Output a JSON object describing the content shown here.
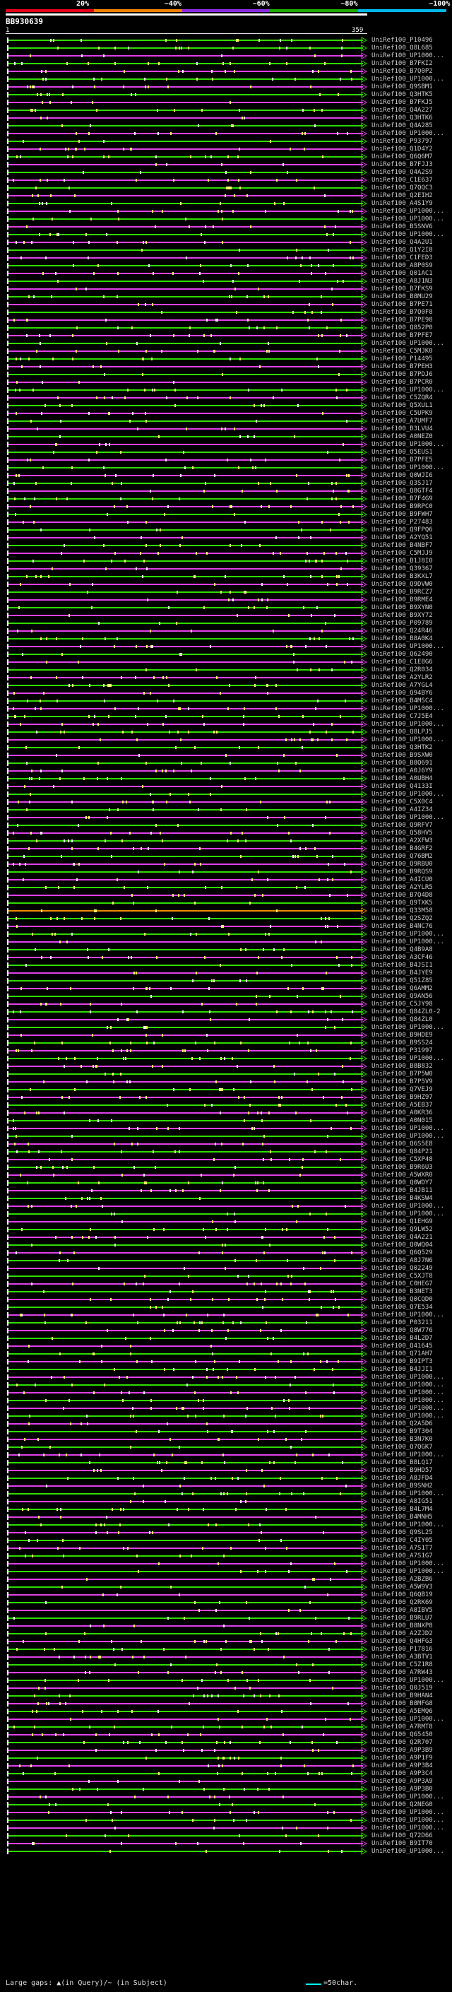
{
  "legend": {
    "labels": [
      "20%",
      "~40%",
      "~60%",
      "~80%",
      "~100%"
    ],
    "colors": [
      "#e8001a",
      "#f08000",
      "#8a2be2",
      "#1faa00",
      "#00b8e8"
    ]
  },
  "query": {
    "id": "BB930639",
    "start": "1",
    "end": "359"
  },
  "hit_colors": {
    "green": "#2fdc00",
    "magenta": "#e040e8",
    "white": "#ffffff",
    "orange": "#f08a00"
  },
  "hits": [
    {
      "acc": "UniRef100_P10496",
      "c": "green"
    },
    {
      "acc": "UniRef100_Q8L685",
      "c": "green"
    },
    {
      "acc": "UniRef100_UP1000...",
      "c": "magenta"
    },
    {
      "acc": "UniRef100_B7FKI2",
      "c": "green"
    },
    {
      "acc": "UniRef100_B7Q0P2",
      "c": "magenta"
    },
    {
      "acc": "UniRef100_UP1000...",
      "c": "green"
    },
    {
      "acc": "UniRef100_Q9SBM1",
      "c": "magenta"
    },
    {
      "acc": "UniRef100_Q3HTK5",
      "c": "green"
    },
    {
      "acc": "UniRef100_B7FKJ5",
      "c": "magenta"
    },
    {
      "acc": "UniRef100_Q4A227",
      "c": "green"
    },
    {
      "acc": "UniRef100_Q3HTK6",
      "c": "magenta"
    },
    {
      "acc": "UniRef100_Q4A285",
      "c": "green"
    },
    {
      "acc": "UniRef100_UP1000...",
      "c": "magenta"
    },
    {
      "acc": "UniRef100_P93797",
      "c": "green"
    },
    {
      "acc": "UniRef100_Q1D4Y2",
      "c": "magenta"
    },
    {
      "acc": "UniRef100_Q6Q6M7",
      "c": "green"
    },
    {
      "acc": "UniRef100_B7FJJ3",
      "c": "magenta"
    },
    {
      "acc": "UniRef100_Q4A2S9",
      "c": "green"
    },
    {
      "acc": "UniRef100_C1E637",
      "c": "magenta"
    },
    {
      "acc": "UniRef100_Q7QQC3",
      "c": "green"
    },
    {
      "acc": "UniRef100_Q2EIH2",
      "c": "magenta"
    },
    {
      "acc": "UniRef100_A4S1Y9",
      "c": "green"
    },
    {
      "acc": "UniRef100_UP1000...",
      "c": "magenta"
    },
    {
      "acc": "UniRef100_UP1000...",
      "c": "green"
    },
    {
      "acc": "UniRef100_B5SNV6",
      "c": "magenta"
    },
    {
      "acc": "UniRef100_UP1000...",
      "c": "green"
    },
    {
      "acc": "UniRef100_Q4A2U1",
      "c": "magenta"
    },
    {
      "acc": "UniRef100_Q1Y2I8",
      "c": "green"
    },
    {
      "acc": "UniRef100_C1FED3",
      "c": "magenta"
    },
    {
      "acc": "UniRef100_A8P0S9",
      "c": "green"
    },
    {
      "acc": "UniRef100_Q01AC1",
      "c": "magenta"
    },
    {
      "acc": "UniRef100_A8J1N3",
      "c": "green"
    },
    {
      "acc": "UniRef100_B7FKS9",
      "c": "magenta"
    },
    {
      "acc": "UniRef100_B8MU29",
      "c": "green"
    },
    {
      "acc": "UniRef100_B7PE71",
      "c": "magenta"
    },
    {
      "acc": "UniRef100_B7Q0F8",
      "c": "green"
    },
    {
      "acc": "UniRef100_B7PE98",
      "c": "magenta"
    },
    {
      "acc": "UniRef100_Q852P0",
      "c": "green"
    },
    {
      "acc": "UniRef100_B7PFE7",
      "c": "magenta"
    },
    {
      "acc": "UniRef100_UP1000...",
      "c": "green"
    },
    {
      "acc": "UniRef100_C5MJK0",
      "c": "magenta"
    },
    {
      "acc": "UniRef100_P14495",
      "c": "green"
    },
    {
      "acc": "UniRef100_B7PEH3",
      "c": "magenta"
    },
    {
      "acc": "UniRef100_B7PDJ6",
      "c": "green"
    },
    {
      "acc": "UniRef100_B7PCR0",
      "c": "magenta"
    },
    {
      "acc": "UniRef100_UP1000...",
      "c": "green"
    },
    {
      "acc": "UniRef100_C5ZQR4",
      "c": "magenta"
    },
    {
      "acc": "UniRef100_Q5XUL1",
      "c": "green"
    },
    {
      "acc": "UniRef100_C5UPK9",
      "c": "magenta"
    },
    {
      "acc": "UniRef100_A7UMF7",
      "c": "green"
    },
    {
      "acc": "UniRef100_B3LVU4",
      "c": "magenta"
    },
    {
      "acc": "UniRef100_A0NEZ0",
      "c": "green"
    },
    {
      "acc": "UniRef100_UP1000...",
      "c": "magenta"
    },
    {
      "acc": "UniRef100_Q5EUS1",
      "c": "green"
    },
    {
      "acc": "UniRef100_B7PFE5",
      "c": "magenta"
    },
    {
      "acc": "UniRef100_UP1000...",
      "c": "green"
    },
    {
      "acc": "UniRef100_Q0WJI6",
      "c": "magenta"
    },
    {
      "acc": "UniRef100_Q3SJ17",
      "c": "green"
    },
    {
      "acc": "UniRef100_Q8GTF4",
      "c": "magenta"
    },
    {
      "acc": "UniRef100_B7F4G9",
      "c": "green"
    },
    {
      "acc": "UniRef100_B9RPC0",
      "c": "magenta"
    },
    {
      "acc": "UniRef100_B9FWH7",
      "c": "green"
    },
    {
      "acc": "UniRef100_P27483",
      "c": "magenta"
    },
    {
      "acc": "UniRef100_Q9FPQ6",
      "c": "green"
    },
    {
      "acc": "UniRef100_A2YQ51",
      "c": "magenta"
    },
    {
      "acc": "UniRef100_B4NBF7",
      "c": "green"
    },
    {
      "acc": "UniRef100_C5MJJ9",
      "c": "magenta"
    },
    {
      "acc": "UniRef100_B1J8I0",
      "c": "green"
    },
    {
      "acc": "UniRef100_Q39367",
      "c": "magenta"
    },
    {
      "acc": "UniRef100_B3KXL7",
      "c": "green"
    },
    {
      "acc": "UniRef100_Q9DVW0",
      "c": "magenta"
    },
    {
      "acc": "UniRef100_B9RCZ7",
      "c": "green"
    },
    {
      "acc": "UniRef100_B9RME4",
      "c": "magenta"
    },
    {
      "acc": "UniRef100_B9XYN0",
      "c": "green"
    },
    {
      "acc": "UniRef100_B9XY72",
      "c": "magenta"
    },
    {
      "acc": "UniRef100_P09789",
      "c": "green"
    },
    {
      "acc": "UniRef100_Q24R46",
      "c": "magenta"
    },
    {
      "acc": "UniRef100_B8A0K4",
      "c": "green"
    },
    {
      "acc": "UniRef100_UP1000...",
      "c": "magenta"
    },
    {
      "acc": "UniRef100_Q62490",
      "c": "green"
    },
    {
      "acc": "UniRef100_C1E8G6",
      "c": "magenta"
    },
    {
      "acc": "UniRef100_Q2R034",
      "c": "green"
    },
    {
      "acc": "UniRef100_A2YLR2",
      "c": "magenta"
    },
    {
      "acc": "UniRef100_A7YGL4",
      "c": "green"
    },
    {
      "acc": "UniRef100_Q94BY6",
      "c": "magenta"
    },
    {
      "acc": "UniRef100_B4MSC4",
      "c": "green"
    },
    {
      "acc": "UniRef100_UP1000...",
      "c": "magenta"
    },
    {
      "acc": "UniRef100_C7J5E4",
      "c": "green"
    },
    {
      "acc": "UniRef100_UP1000...",
      "c": "magenta"
    },
    {
      "acc": "UniRef100_Q8LPJ5",
      "c": "green"
    },
    {
      "acc": "UniRef100_UP1000...",
      "c": "magenta"
    },
    {
      "acc": "UniRef100_Q3HTK2",
      "c": "green"
    },
    {
      "acc": "UniRef100_B9SXW0",
      "c": "magenta"
    },
    {
      "acc": "UniRef100_B8Q691",
      "c": "green"
    },
    {
      "acc": "UniRef100_A0J6Y9",
      "c": "magenta"
    },
    {
      "acc": "UniRef100_A0UBH4",
      "c": "green"
    },
    {
      "acc": "UniRef100_Q4133I",
      "c": "magenta"
    },
    {
      "acc": "UniRef100_UP1000...",
      "c": "green"
    },
    {
      "acc": "UniRef100_C5X0C4",
      "c": "magenta"
    },
    {
      "acc": "UniRef100_A4IZ34",
      "c": "green"
    },
    {
      "acc": "UniRef100_UP1000...",
      "c": "magenta"
    },
    {
      "acc": "UniRef100_Q9RFV7",
      "c": "green"
    },
    {
      "acc": "UniRef100_Q58HV5",
      "c": "magenta"
    },
    {
      "acc": "UniRef100_A2XFW3",
      "c": "green"
    },
    {
      "acc": "UniRef100_B4GRF2",
      "c": "magenta"
    },
    {
      "acc": "UniRef100_Q76BM2",
      "c": "green"
    },
    {
      "acc": "UniRef100_Q9RBU0",
      "c": "magenta"
    },
    {
      "acc": "UniRef100_B9RQS9",
      "c": "green"
    },
    {
      "acc": "UniRef100_A4ICU0",
      "c": "magenta"
    },
    {
      "acc": "UniRef100_A2YLR5",
      "c": "green"
    },
    {
      "acc": "UniRef100_B7Q4D8",
      "c": "magenta"
    },
    {
      "acc": "UniRef100_Q9TXK5",
      "c": "green"
    },
    {
      "acc": "UniRef100_Q33M58",
      "c": "orange"
    },
    {
      "acc": "UniRef100_Q2SZQ2",
      "c": "green"
    },
    {
      "acc": "UniRef100_B4NC76",
      "c": "magenta"
    },
    {
      "acc": "UniRef100_UP1000...",
      "c": "green"
    },
    {
      "acc": "UniRef100_UP1000...",
      "c": "magenta"
    },
    {
      "acc": "UniRef100_Q4B9A8",
      "c": "green"
    },
    {
      "acc": "UniRef100_A3CF46",
      "c": "magenta"
    },
    {
      "acc": "UniRef100_B4JSI1",
      "c": "green"
    },
    {
      "acc": "UniRef100_B4JYE9",
      "c": "magenta"
    },
    {
      "acc": "UniRef100_Q51Z85",
      "c": "green"
    },
    {
      "acc": "UniRef100_Q6AMM2",
      "c": "magenta"
    },
    {
      "acc": "UniRef100_Q9AN56",
      "c": "green"
    },
    {
      "acc": "UniRef100_C5JY98",
      "c": "magenta"
    },
    {
      "acc": "UniRef100_Q84ZL0-2",
      "c": "green"
    },
    {
      "acc": "UniRef100_Q84ZL0",
      "c": "magenta"
    },
    {
      "acc": "UniRef100_UP1000...",
      "c": "green"
    },
    {
      "acc": "UniRef100_B9HDE9",
      "c": "magenta"
    },
    {
      "acc": "UniRef100_B9SS24",
      "c": "green"
    },
    {
      "acc": "UniRef100_P31997",
      "c": "magenta"
    },
    {
      "acc": "UniRef100_UP1000...",
      "c": "green"
    },
    {
      "acc": "UniRef100_B8B832",
      "c": "magenta"
    },
    {
      "acc": "UniRef100_B7P5W0",
      "c": "green"
    },
    {
      "acc": "UniRef100_B7P5V9",
      "c": "magenta"
    },
    {
      "acc": "UniRef100_Q7VEJ9",
      "c": "green"
    },
    {
      "acc": "UniRef100_B9HZ97",
      "c": "magenta"
    },
    {
      "acc": "UniRef100_A5EB37",
      "c": "green"
    },
    {
      "acc": "UniRef100_A0KR36",
      "c": "magenta"
    },
    {
      "acc": "UniRef100_A0N015",
      "c": "green"
    },
    {
      "acc": "UniRef100_UP1000...",
      "c": "magenta"
    },
    {
      "acc": "UniRef100_UP1000...",
      "c": "green"
    },
    {
      "acc": "UniRef100_Q6S5E8",
      "c": "magenta"
    },
    {
      "acc": "UniRef100_Q84P21",
      "c": "green"
    },
    {
      "acc": "UniRef100_C5XP48",
      "c": "magenta"
    },
    {
      "acc": "UniRef100_B9R6U3",
      "c": "green"
    },
    {
      "acc": "UniRef100_A5WXR0",
      "c": "magenta"
    },
    {
      "acc": "UniRef100_Q0WDY7",
      "c": "green"
    },
    {
      "acc": "UniRef100_B4JB11",
      "c": "magenta"
    },
    {
      "acc": "UniRef100_B4KSW4",
      "c": "green"
    },
    {
      "acc": "UniRef100_UP1000...",
      "c": "magenta"
    },
    {
      "acc": "UniRef100_UP1000...",
      "c": "green"
    },
    {
      "acc": "UniRef100_Q1EHG9",
      "c": "magenta"
    },
    {
      "acc": "UniRef100_Q9LW52",
      "c": "green"
    },
    {
      "acc": "UniRef100_Q4A221",
      "c": "magenta"
    },
    {
      "acc": "UniRef100_Q0WQ04",
      "c": "green"
    },
    {
      "acc": "UniRef100_Q6Q529",
      "c": "magenta"
    },
    {
      "acc": "UniRef100_A8J7N6",
      "c": "green"
    },
    {
      "acc": "UniRef100_Q02249",
      "c": "magenta"
    },
    {
      "acc": "UniRef100_C5XJT8",
      "c": "green"
    },
    {
      "acc": "UniRef100_C0HEG7",
      "c": "magenta"
    },
    {
      "acc": "UniRef100_B3NET3",
      "c": "green"
    },
    {
      "acc": "UniRef100_Q0CQD0",
      "c": "magenta"
    },
    {
      "acc": "UniRef100_Q7E534",
      "c": "green"
    },
    {
      "acc": "UniRef100_UP1000...",
      "c": "magenta"
    },
    {
      "acc": "UniRef100_P03211",
      "c": "green"
    },
    {
      "acc": "UniRef100_Q8W776",
      "c": "magenta"
    },
    {
      "acc": "UniRef100_B4L2D7",
      "c": "green"
    },
    {
      "acc": "UniRef100_Q41645",
      "c": "magenta"
    },
    {
      "acc": "UniRef100_Q71AH7",
      "c": "green"
    },
    {
      "acc": "UniRef100_B9IPT3",
      "c": "magenta"
    },
    {
      "acc": "UniRef100_B4JJI1",
      "c": "green"
    },
    {
      "acc": "UniRef100_UP1000...",
      "c": "magenta"
    },
    {
      "acc": "UniRef100_UP1000...",
      "c": "green"
    },
    {
      "acc": "UniRef100_UP1000...",
      "c": "magenta"
    },
    {
      "acc": "UniRef100_UP1000...",
      "c": "green"
    },
    {
      "acc": "UniRef100_UP1000...",
      "c": "magenta"
    },
    {
      "acc": "UniRef100_UP1000...",
      "c": "green"
    },
    {
      "acc": "UniRef100_Q2A5D6",
      "c": "magenta"
    },
    {
      "acc": "UniRef100_B9T304",
      "c": "green"
    },
    {
      "acc": "UniRef100_B3N7K0",
      "c": "magenta"
    },
    {
      "acc": "UniRef100_Q7QGK7",
      "c": "green"
    },
    {
      "acc": "UniRef100_UP1000...",
      "c": "magenta"
    },
    {
      "acc": "UniRef100_B8LQ17",
      "c": "green"
    },
    {
      "acc": "UniRef100_B9HD57",
      "c": "magenta"
    },
    {
      "acc": "UniRef100_A8JFD4",
      "c": "green"
    },
    {
      "acc": "UniRef100_B9SNH2",
      "c": "magenta"
    },
    {
      "acc": "UniRef100_UP1000...",
      "c": "green"
    },
    {
      "acc": "UniRef100_A8IG51",
      "c": "magenta"
    },
    {
      "acc": "UniRef100_B4L7M4",
      "c": "green"
    },
    {
      "acc": "UniRef100_B4MNH5",
      "c": "magenta"
    },
    {
      "acc": "UniRef100_UP1000...",
      "c": "green"
    },
    {
      "acc": "UniRef100_Q9SL25",
      "c": "magenta"
    },
    {
      "acc": "UniRef100_C4IY05",
      "c": "green"
    },
    {
      "acc": "UniRef100_A7S1T7",
      "c": "magenta"
    },
    {
      "acc": "UniRef100_A7S1G7",
      "c": "green"
    },
    {
      "acc": "UniRef100_UP1000...",
      "c": "magenta"
    },
    {
      "acc": "UniRef100_UP1000...",
      "c": "green"
    },
    {
      "acc": "UniRef100_A2BZB6",
      "c": "magenta"
    },
    {
      "acc": "UniRef100_A5W9V3",
      "c": "green"
    },
    {
      "acc": "UniRef100_Q6QB19",
      "c": "magenta"
    },
    {
      "acc": "UniRef100_Q2RK69",
      "c": "green"
    },
    {
      "acc": "UniRef100_A8IBV5",
      "c": "magenta"
    },
    {
      "acc": "UniRef100_B9RLU7",
      "c": "green"
    },
    {
      "acc": "UniRef100_B8NXP8",
      "c": "magenta"
    },
    {
      "acc": "UniRef100_A2ZJD2",
      "c": "green"
    },
    {
      "acc": "UniRef100_Q4HFG3",
      "c": "magenta"
    },
    {
      "acc": "UniRef100_P17816",
      "c": "green"
    },
    {
      "acc": "UniRef100_A3BTV1",
      "c": "magenta"
    },
    {
      "acc": "UniRef100_C5Z1R8",
      "c": "green"
    },
    {
      "acc": "UniRef100_A7RW43",
      "c": "magenta"
    },
    {
      "acc": "UniRef100_UP1000...",
      "c": "green"
    },
    {
      "acc": "UniRef100_Q0J519",
      "c": "magenta"
    },
    {
      "acc": "UniRef100_B9HAN4",
      "c": "green"
    },
    {
      "acc": "UniRef100_B8MFG8",
      "c": "magenta"
    },
    {
      "acc": "UniRef100_A5EMQ6",
      "c": "green"
    },
    {
      "acc": "UniRef100_UP1000...",
      "c": "magenta"
    },
    {
      "acc": "UniRef100_A7RMT8",
      "c": "green"
    },
    {
      "acc": "UniRef100_Q65450",
      "c": "magenta"
    },
    {
      "acc": "UniRef100_Q2R707",
      "c": "green"
    },
    {
      "acc": "UniRef100_A9P3B9",
      "c": "magenta"
    },
    {
      "acc": "UniRef100_A9P1F9",
      "c": "green"
    },
    {
      "acc": "UniRef100_A9P3B4",
      "c": "magenta"
    },
    {
      "acc": "UniRef100_A9P3C4",
      "c": "green"
    },
    {
      "acc": "UniRef100_A9P3A9",
      "c": "magenta"
    },
    {
      "acc": "UniRef100_A9P3B0",
      "c": "green"
    },
    {
      "acc": "UniRef100_UP1000...",
      "c": "magenta"
    },
    {
      "acc": "UniRef100_Q2NEG0",
      "c": "green"
    },
    {
      "acc": "UniRef100_UP1000...",
      "c": "magenta"
    },
    {
      "acc": "UniRef100_UP1000...",
      "c": "green"
    },
    {
      "acc": "UniRef100_UP1000...",
      "c": "magenta"
    },
    {
      "acc": "UniRef100_Q72D66",
      "c": "green"
    },
    {
      "acc": "UniRef100_B9IT70",
      "c": "magenta"
    },
    {
      "acc": "UniRef100_UP1000...",
      "c": "green"
    }
  ],
  "footer": {
    "large_gaps": "Large gaps: ▲(in Query)/~ (in Subject)",
    "scale": "=50char."
  }
}
